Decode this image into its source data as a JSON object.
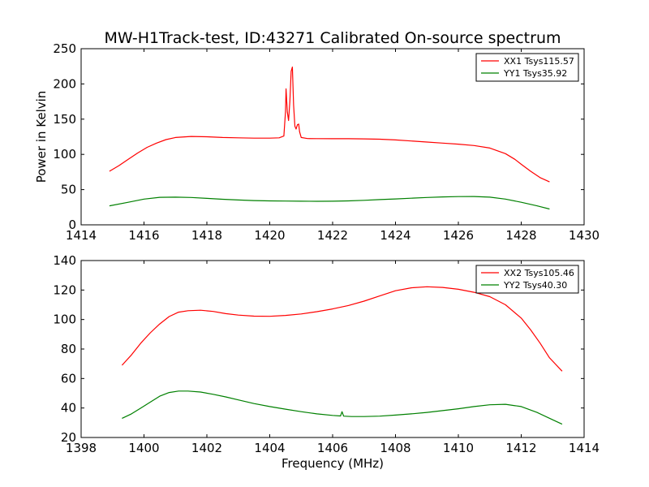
{
  "figure": {
    "title": "MW-H1Track-test, ID:43271 Calibrated On-source spectrum",
    "background": "#ffffff"
  },
  "chart_data": [
    {
      "type": "line",
      "title": "MW-H1Track-test, ID:43271 Calibrated On-source spectrum",
      "xlabel": "",
      "ylabel": "Power in Kelvin",
      "xlim": [
        1414,
        1430
      ],
      "ylim": [
        0,
        250
      ],
      "xticks": [
        1414,
        1416,
        1418,
        1420,
        1422,
        1424,
        1426,
        1428,
        1430
      ],
      "yticks": [
        0,
        50,
        100,
        150,
        200,
        250
      ],
      "grid": false,
      "legend": "top-right",
      "series": [
        {
          "name": "XX1 Tsys115.57",
          "color": "#ff0000",
          "points": [
            [
              1414.9,
              76
            ],
            [
              1415.2,
              84
            ],
            [
              1415.5,
              93
            ],
            [
              1415.8,
              102
            ],
            [
              1416.1,
              110
            ],
            [
              1416.4,
              116
            ],
            [
              1416.7,
              121
            ],
            [
              1417.0,
              124
            ],
            [
              1417.5,
              125.5
            ],
            [
              1418.0,
              125
            ],
            [
              1418.5,
              124
            ],
            [
              1419.0,
              123.5
            ],
            [
              1419.5,
              123
            ],
            [
              1420.0,
              123
            ],
            [
              1420.3,
              123.5
            ],
            [
              1420.45,
              126
            ],
            [
              1420.5,
              160
            ],
            [
              1420.52,
              193
            ],
            [
              1420.56,
              160
            ],
            [
              1420.6,
              148
            ],
            [
              1420.64,
              175
            ],
            [
              1420.68,
              218
            ],
            [
              1420.72,
              224
            ],
            [
              1420.76,
              170
            ],
            [
              1420.8,
              140
            ],
            [
              1420.84,
              136
            ],
            [
              1420.88,
              142
            ],
            [
              1420.92,
              143
            ],
            [
              1420.95,
              132
            ],
            [
              1421.0,
              124
            ],
            [
              1421.2,
              122.5
            ],
            [
              1421.5,
              122.3
            ],
            [
              1422.0,
              122.2
            ],
            [
              1422.5,
              122.2
            ],
            [
              1423.0,
              122
            ],
            [
              1423.5,
              121.5
            ],
            [
              1424.0,
              120.5
            ],
            [
              1424.5,
              119
            ],
            [
              1425.0,
              117.5
            ],
            [
              1425.5,
              116
            ],
            [
              1426.0,
              114.5
            ],
            [
              1426.5,
              112.5
            ],
            [
              1427.0,
              109
            ],
            [
              1427.5,
              101
            ],
            [
              1427.8,
              93
            ],
            [
              1428.0,
              86
            ],
            [
              1428.3,
              76
            ],
            [
              1428.6,
              67
            ],
            [
              1428.9,
              61
            ]
          ]
        },
        {
          "name": "YY1 Tsys35.92",
          "color": "#008000",
          "points": [
            [
              1414.9,
              27
            ],
            [
              1415.5,
              32
            ],
            [
              1416.0,
              36.5
            ],
            [
              1416.5,
              39
            ],
            [
              1417.0,
              39.3
            ],
            [
              1417.5,
              38.8
            ],
            [
              1418.0,
              37.5
            ],
            [
              1418.5,
              36.3
            ],
            [
              1419.0,
              35.3
            ],
            [
              1419.5,
              34.5
            ],
            [
              1420.0,
              34
            ],
            [
              1420.5,
              33.7
            ],
            [
              1421.0,
              33.5
            ],
            [
              1421.5,
              33.4
            ],
            [
              1422.0,
              33.5
            ],
            [
              1422.5,
              34
            ],
            [
              1423.0,
              34.8
            ],
            [
              1423.5,
              35.8
            ],
            [
              1424.0,
              36.8
            ],
            [
              1424.5,
              37.8
            ],
            [
              1425.0,
              38.8
            ],
            [
              1425.5,
              39.6
            ],
            [
              1426.0,
              40.1
            ],
            [
              1426.5,
              40.2
            ],
            [
              1427.0,
              39.3
            ],
            [
              1427.5,
              36.5
            ],
            [
              1428.0,
              32
            ],
            [
              1428.5,
              27
            ],
            [
              1428.9,
              22.5
            ]
          ]
        }
      ]
    },
    {
      "type": "line",
      "title": "",
      "xlabel": "Frequency (MHz)",
      "ylabel": "",
      "xlim": [
        1398,
        1414
      ],
      "ylim": [
        20,
        140
      ],
      "xticks": [
        1398,
        1400,
        1402,
        1404,
        1406,
        1408,
        1410,
        1412,
        1414
      ],
      "yticks": [
        20,
        40,
        60,
        80,
        100,
        120,
        140
      ],
      "grid": false,
      "legend": "top-right",
      "series": [
        {
          "name": "XX2 Tsys105.46",
          "color": "#ff0000",
          "points": [
            [
              1399.3,
              69
            ],
            [
              1399.6,
              76
            ],
            [
              1399.9,
              84
            ],
            [
              1400.2,
              91
            ],
            [
              1400.5,
              97
            ],
            [
              1400.8,
              102
            ],
            [
              1401.1,
              105
            ],
            [
              1401.4,
              106
            ],
            [
              1401.8,
              106.3
            ],
            [
              1402.2,
              105.5
            ],
            [
              1402.6,
              104
            ],
            [
              1403.0,
              103
            ],
            [
              1403.5,
              102.3
            ],
            [
              1404.0,
              102.2
            ],
            [
              1404.5,
              102.8
            ],
            [
              1405.0,
              103.8
            ],
            [
              1405.5,
              105.3
            ],
            [
              1406.0,
              107.2
            ],
            [
              1406.5,
              109.5
            ],
            [
              1407.0,
              112.5
            ],
            [
              1407.5,
              116
            ],
            [
              1408.0,
              119.5
            ],
            [
              1408.5,
              121.5
            ],
            [
              1409.0,
              122.2
            ],
            [
              1409.5,
              121.8
            ],
            [
              1410.0,
              120.5
            ],
            [
              1410.5,
              118.5
            ],
            [
              1411.0,
              115.5
            ],
            [
              1411.5,
              110
            ],
            [
              1412.0,
              101
            ],
            [
              1412.3,
              93
            ],
            [
              1412.6,
              84
            ],
            [
              1412.9,
              74
            ],
            [
              1413.3,
              65
            ]
          ]
        },
        {
          "name": "YY2 Tsys40.30",
          "color": "#008000",
          "points": [
            [
              1399.3,
              33
            ],
            [
              1399.6,
              36
            ],
            [
              1399.9,
              40
            ],
            [
              1400.2,
              44
            ],
            [
              1400.5,
              48
            ],
            [
              1400.8,
              50.5
            ],
            [
              1401.1,
              51.5
            ],
            [
              1401.4,
              51.5
            ],
            [
              1401.8,
              50.8
            ],
            [
              1402.2,
              49.3
            ],
            [
              1402.6,
              47.5
            ],
            [
              1403.0,
              45.5
            ],
            [
              1403.5,
              43
            ],
            [
              1404.0,
              41
            ],
            [
              1404.5,
              39.2
            ],
            [
              1405.0,
              37.5
            ],
            [
              1405.5,
              36
            ],
            [
              1406.0,
              35
            ],
            [
              1406.25,
              34.6
            ],
            [
              1406.3,
              37.5
            ],
            [
              1406.35,
              34.5
            ],
            [
              1406.6,
              34.2
            ],
            [
              1407.0,
              34.2
            ],
            [
              1407.5,
              34.5
            ],
            [
              1408.0,
              35.2
            ],
            [
              1408.5,
              36
            ],
            [
              1409.0,
              37
            ],
            [
              1409.5,
              38.2
            ],
            [
              1410.0,
              39.5
            ],
            [
              1410.5,
              41
            ],
            [
              1411.0,
              42.2
            ],
            [
              1411.5,
              42.5
            ],
            [
              1412.0,
              41
            ],
            [
              1412.5,
              37
            ],
            [
              1413.0,
              32
            ],
            [
              1413.3,
              29
            ]
          ]
        }
      ]
    }
  ]
}
